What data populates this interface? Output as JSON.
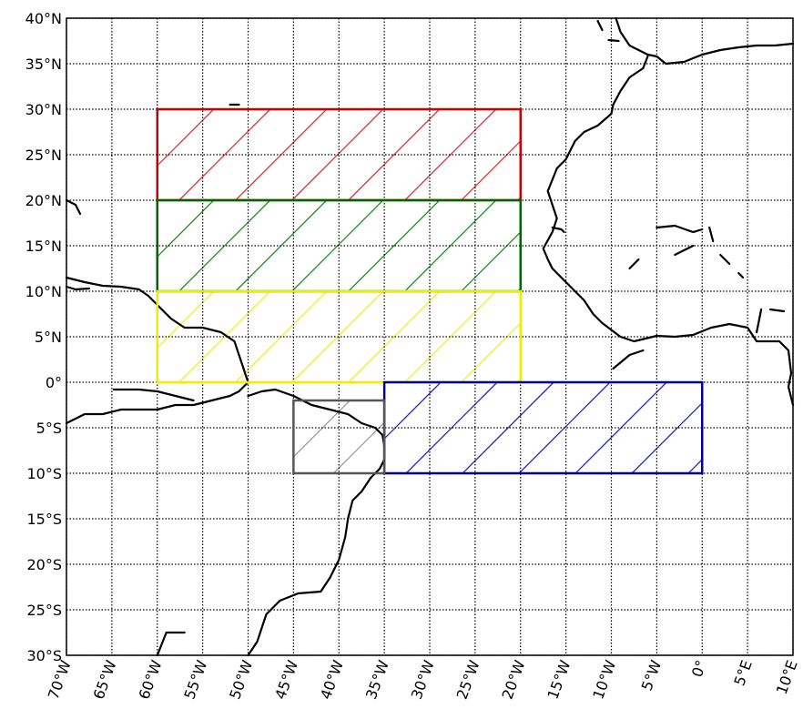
{
  "map": {
    "projection": "PlateCarree",
    "lon_range": [
      -70,
      10
    ],
    "lat_range": [
      -30,
      40
    ],
    "gridlines": {
      "style": "dotted",
      "color": "#000000",
      "lon_step": 5,
      "lat_step": 5
    },
    "lat_labels": [
      "40°N",
      "35°N",
      "30°N",
      "25°N",
      "20°N",
      "15°N",
      "10°N",
      "5°N",
      "0°",
      "5°S",
      "10°S",
      "15°S",
      "20°S",
      "25°S",
      "30°S"
    ],
    "lat_values": [
      40,
      35,
      30,
      25,
      20,
      15,
      10,
      5,
      0,
      -5,
      -10,
      -15,
      -20,
      -25,
      -30
    ],
    "lon_labels": [
      "70°W",
      "65°W",
      "60°W",
      "55°W",
      "50°W",
      "45°W",
      "40°W",
      "35°W",
      "30°W",
      "25°W",
      "20°W",
      "15°W",
      "10°W",
      "5°W",
      "0°",
      "5°E",
      "10°E"
    ],
    "lon_values": [
      -70,
      -65,
      -60,
      -55,
      -50,
      -45,
      -40,
      -35,
      -30,
      -25,
      -20,
      -15,
      -10,
      -5,
      0,
      5,
      10
    ],
    "regions": [
      {
        "id": "red",
        "lon": [
          -60,
          -20
        ],
        "lat": [
          20,
          30
        ],
        "color": "#cc0000",
        "hatch": "#dd3333"
      },
      {
        "id": "green",
        "lon": [
          -60,
          -20
        ],
        "lat": [
          10,
          20
        ],
        "color": "#006600",
        "hatch": "#228822"
      },
      {
        "id": "yellow",
        "lon": [
          -60,
          -20
        ],
        "lat": [
          0,
          10
        ],
        "color": "#eeee00",
        "hatch": "#eeee33"
      },
      {
        "id": "blue",
        "lon": [
          -35,
          0
        ],
        "lat": [
          -10,
          0
        ],
        "color": "#000099",
        "hatch": "#2222cc"
      },
      {
        "id": "gray",
        "lon": [
          -45,
          -35
        ],
        "lat": [
          -10,
          -2
        ],
        "color": "#555555",
        "hatch": "#999999"
      }
    ],
    "coastlines": [
      [
        [
          -70,
          -4.5
        ],
        [
          -68,
          -3.5
        ],
        [
          -66,
          -3.5
        ],
        [
          -64,
          -3
        ],
        [
          -62,
          -3
        ],
        [
          -60,
          -3
        ],
        [
          -58,
          -2.5
        ],
        [
          -56,
          -2.5
        ],
        [
          -54,
          -2
        ],
        [
          -52,
          -1.5
        ],
        [
          -51,
          -1
        ],
        [
          -50.5,
          -0.5
        ],
        [
          -50,
          0
        ],
        [
          -50.5,
          1.5
        ],
        [
          -51,
          3
        ],
        [
          -51.5,
          4.5
        ],
        [
          -53,
          5.5
        ],
        [
          -55,
          6
        ],
        [
          -57,
          6
        ],
        [
          -58.5,
          7
        ],
        [
          -60,
          8.5
        ],
        [
          -61,
          9.5
        ],
        [
          -62,
          10.2
        ],
        [
          -64,
          10.5
        ],
        [
          -66,
          10.6
        ],
        [
          -68,
          11
        ],
        [
          -70,
          11.5
        ]
      ],
      [
        [
          -64.8,
          -0.8
        ],
        [
          -62,
          -0.8
        ],
        [
          -60,
          -1
        ],
        [
          -58,
          -1.5
        ],
        [
          -56,
          -2
        ]
      ],
      [
        [
          -50,
          -1.5
        ],
        [
          -48.5,
          -1
        ],
        [
          -47,
          -0.8
        ],
        [
          -45,
          -1.5
        ],
        [
          -43,
          -2.5
        ],
        [
          -41,
          -3
        ],
        [
          -39,
          -3.5
        ],
        [
          -37.5,
          -4.5
        ],
        [
          -36,
          -5
        ],
        [
          -35.2,
          -5.8
        ],
        [
          -35,
          -7
        ],
        [
          -35,
          -8.5
        ],
        [
          -35.5,
          -9.5
        ],
        [
          -36.5,
          -10.5
        ],
        [
          -37.5,
          -12
        ],
        [
          -38.5,
          -13
        ],
        [
          -39,
          -15
        ],
        [
          -39.3,
          -17
        ],
        [
          -40,
          -19.5
        ],
        [
          -41,
          -21.5
        ],
        [
          -42,
          -23
        ],
        [
          -44.5,
          -23.2
        ],
        [
          -46.5,
          -24
        ],
        [
          -48,
          -25.5
        ],
        [
          -48.5,
          -27
        ],
        [
          -49,
          -28.5
        ],
        [
          -50,
          -30
        ]
      ],
      [
        [
          -60,
          -30
        ],
        [
          -59,
          -27.5
        ],
        [
          -57,
          -27.5
        ]
      ],
      [
        [
          -70,
          20
        ],
        [
          -69,
          19.5
        ],
        [
          -68.5,
          18.5
        ]
      ],
      [
        [
          -70,
          10.5
        ],
        [
          -69,
          10.2
        ],
        [
          -67.5,
          10.3
        ]
      ],
      [
        [
          -52,
          30.5
        ],
        [
          -51,
          30.5
        ]
      ],
      [
        [
          10,
          37.2
        ],
        [
          8,
          37
        ],
        [
          6,
          37
        ],
        [
          4,
          36.8
        ],
        [
          2,
          36.5
        ],
        [
          0,
          36
        ],
        [
          -2,
          35.2
        ],
        [
          -4,
          35
        ],
        [
          -5,
          35.8
        ],
        [
          -6,
          36
        ]
      ],
      [
        [
          -6,
          36
        ],
        [
          -8,
          37
        ],
        [
          -9,
          38.5
        ],
        [
          -9.5,
          40
        ]
      ],
      [
        [
          -6,
          35.8
        ],
        [
          -6.5,
          34.5
        ],
        [
          -8,
          33.5
        ],
        [
          -9,
          32
        ],
        [
          -9.8,
          30.5
        ],
        [
          -10,
          29.5
        ],
        [
          -11.5,
          28.2
        ],
        [
          -13,
          27.5
        ],
        [
          -14,
          26.5
        ],
        [
          -15,
          24.5
        ],
        [
          -16,
          23.5
        ],
        [
          -17,
          21
        ],
        [
          -16.5,
          19.5
        ],
        [
          -16,
          18
        ],
        [
          -16.5,
          16.5
        ],
        [
          -17.5,
          14.7
        ],
        [
          -17,
          13.5
        ],
        [
          -16.5,
          12.5
        ],
        [
          -15.5,
          11.5
        ],
        [
          -14,
          10
        ],
        [
          -13,
          9
        ],
        [
          -12,
          7.5
        ],
        [
          -11,
          6.5
        ],
        [
          -9,
          5
        ],
        [
          -7.5,
          4.5
        ],
        [
          -5,
          5.1
        ],
        [
          -3,
          5
        ],
        [
          -1,
          5.2
        ],
        [
          1,
          6
        ],
        [
          3,
          6.4
        ],
        [
          5,
          6
        ],
        [
          6,
          4.5
        ],
        [
          7,
          4.5
        ],
        [
          8.5,
          4.5
        ],
        [
          9.5,
          3.5
        ],
        [
          9.8,
          1
        ],
        [
          9.5,
          -0.5
        ],
        [
          10,
          -2.5
        ]
      ],
      [
        [
          -16.5,
          17
        ],
        [
          -15.5,
          16.8
        ],
        [
          -15.2,
          16.5
        ]
      ],
      [
        [
          -9.8,
          1.5
        ],
        [
          -8,
          3
        ],
        [
          -6.5,
          3.5
        ]
      ],
      [
        [
          -5,
          17
        ],
        [
          -3,
          17.2
        ],
        [
          -1,
          16.5
        ],
        [
          0,
          16.8
        ]
      ],
      [
        [
          -8,
          12.5
        ],
        [
          -7,
          13.5
        ]
      ],
      [
        [
          -3,
          14
        ],
        [
          -1,
          15
        ]
      ],
      [
        [
          2,
          14
        ],
        [
          3,
          13
        ]
      ],
      [
        [
          4,
          12
        ],
        [
          4.5,
          11.5
        ]
      ],
      [
        [
          6.5,
          8
        ],
        [
          6,
          5.5
        ]
      ],
      [
        [
          7.5,
          8
        ],
        [
          9,
          7.8
        ]
      ],
      [
        [
          0.8,
          17
        ],
        [
          1.2,
          15.5
        ]
      ],
      [
        [
          -10.3,
          37.6
        ],
        [
          -9.2,
          37.5
        ]
      ],
      [
        [
          -11.5,
          39.7
        ],
        [
          -11,
          38.7
        ]
      ]
    ]
  }
}
